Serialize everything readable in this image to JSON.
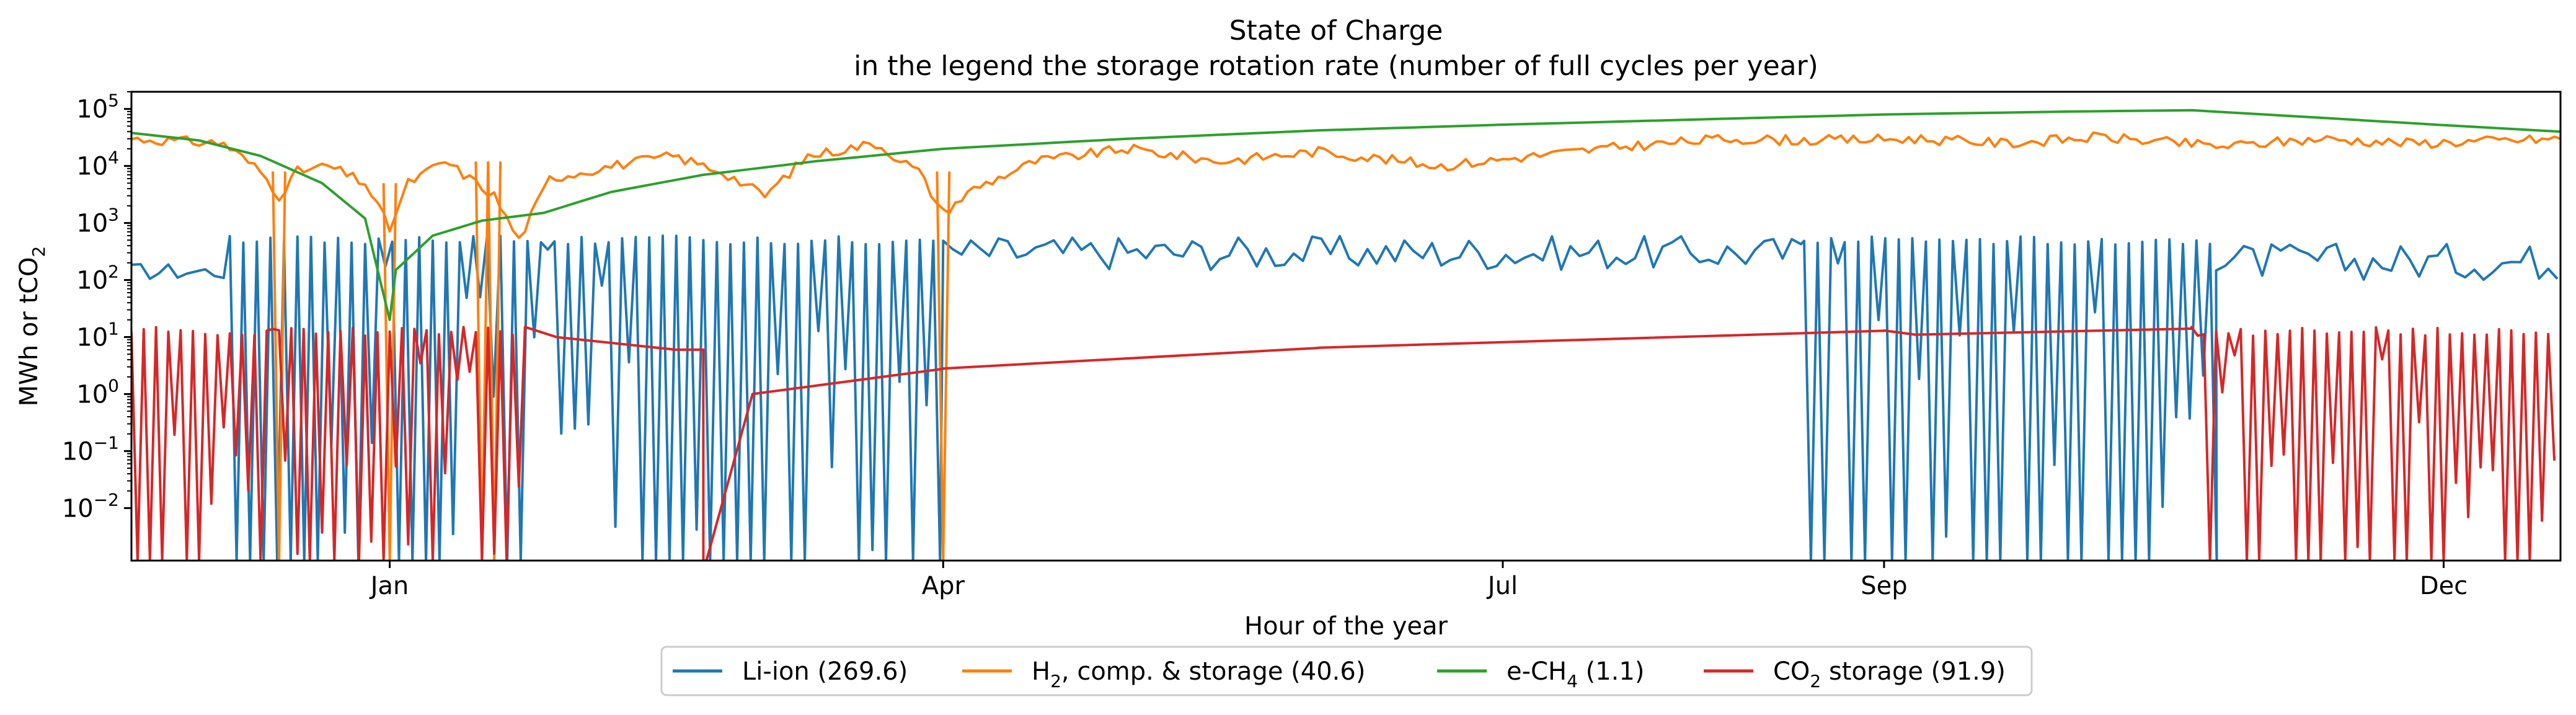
{
  "chart_data": {
    "type": "line",
    "title": "State of Charge",
    "subtitle": "in the legend the storage rotation rate (number of full cycles per year)",
    "xlabel": "Hour of the year",
    "ylabel": "MWh or tCO2",
    "yscale": "log",
    "ylim": [
      0.0012,
      200000
    ],
    "xlim": [
      "2012-11-20",
      "2013-12-20"
    ],
    "grid": false,
    "legend_position": "bottom-center",
    "x_ticks": [
      {
        "date": "2013-01-01",
        "label": "Jan"
      },
      {
        "date": "2013-04-01",
        "label": "Apr"
      },
      {
        "date": "2013-07-01",
        "label": "Jul"
      },
      {
        "date": "2013-09-01",
        "label": "Sep"
      },
      {
        "date": "2013-12-01",
        "label": "Dec"
      }
    ],
    "y_ticks": [
      {
        "value": 0.01,
        "base": "10",
        "exp": "−2"
      },
      {
        "value": 0.1,
        "base": "10",
        "exp": "−1"
      },
      {
        "value": 1,
        "base": "10",
        "exp": "0"
      },
      {
        "value": 10,
        "base": "10",
        "exp": "1"
      },
      {
        "value": 100,
        "base": "10",
        "exp": "2"
      },
      {
        "value": 1000,
        "base": "10",
        "exp": "3"
      },
      {
        "value": 10000,
        "base": "10",
        "exp": "4"
      },
      {
        "value": 100000,
        "base": "10",
        "exp": "5"
      }
    ],
    "series": [
      {
        "name": "Li-ion (269.6)",
        "color": "#1f77b4",
        "regime": [
          {
            "date": "2012-11-20",
            "kind": "active",
            "hi": 200,
            "lo": 100
          },
          {
            "date": "2012-12-06",
            "kind": "cycling",
            "hi": 600,
            "lo": 0.0012
          },
          {
            "date": "2013-04-01",
            "kind": "active",
            "hi": 600,
            "lo": 150
          },
          {
            "date": "2013-08-19",
            "kind": "cycling",
            "hi": 600,
            "lo": 0.0012
          },
          {
            "date": "2013-10-25",
            "kind": "active",
            "hi": 450,
            "lo": 100
          },
          {
            "date": "2013-12-20",
            "kind": "end",
            "hi": 300,
            "lo": 100
          }
        ]
      },
      {
        "name": "H2, comp. & storage (40.6)",
        "name_parts": {
          "pre": "H",
          "sub": "2",
          "post": ", comp. & storage (40.6)"
        },
        "color": "#ff7f0e",
        "points": [
          [
            "2012-11-20",
            30000
          ],
          [
            "2012-12-05",
            25000
          ],
          [
            "2012-12-11",
            8000
          ],
          [
            "2012-12-14",
            3000
          ],
          [
            "2012-12-17",
            8000
          ],
          [
            "2012-12-22",
            10000
          ],
          [
            "2012-12-28",
            5000
          ],
          [
            "2013-01-01",
            800
          ],
          [
            "2013-01-04",
            5000
          ],
          [
            "2013-01-10",
            12000
          ],
          [
            "2013-01-18",
            3000
          ],
          [
            "2013-01-22",
            500
          ],
          [
            "2013-01-27",
            6000
          ],
          [
            "2013-02-06",
            10000
          ],
          [
            "2013-02-16",
            15000
          ],
          [
            "2013-02-24",
            8000
          ],
          [
            "2013-03-03",
            3000
          ],
          [
            "2013-03-10",
            15000
          ],
          [
            "2013-03-21",
            25000
          ],
          [
            "2013-03-28",
            8000
          ],
          [
            "2013-04-01",
            1500
          ],
          [
            "2013-04-06",
            4000
          ],
          [
            "2013-04-16",
            12000
          ],
          [
            "2013-05-01",
            20000
          ],
          [
            "2013-05-16",
            12000
          ],
          [
            "2013-06-01",
            18000
          ],
          [
            "2013-06-21",
            10000
          ],
          [
            "2013-07-06",
            15000
          ],
          [
            "2013-07-21",
            22000
          ],
          [
            "2013-08-06",
            30000
          ],
          [
            "2013-08-21",
            28000
          ],
          [
            "2013-09-06",
            30000
          ],
          [
            "2013-09-21",
            25000
          ],
          [
            "2013-10-06",
            32000
          ],
          [
            "2013-10-26",
            22000
          ],
          [
            "2013-11-11",
            30000
          ],
          [
            "2013-11-26",
            25000
          ],
          [
            "2013-12-20",
            30000
          ]
        ],
        "drops_to_zero": [
          "2012-12-14",
          "2013-01-01",
          "2013-01-16",
          "2013-01-18",
          "2013-04-01"
        ]
      },
      {
        "name": "e-CH4 (1.1)",
        "name_parts": {
          "pre": "e-CH",
          "sub": "4",
          "post": " (1.1)"
        },
        "color": "#2ca02c",
        "points": [
          [
            "2012-11-20",
            38000
          ],
          [
            "2012-12-01",
            28000
          ],
          [
            "2012-12-11",
            15000
          ],
          [
            "2012-12-21",
            5000
          ],
          [
            "2012-12-28",
            1200
          ],
          [
            "2013-01-01",
            20
          ],
          [
            "2013-01-02",
            150
          ],
          [
            "2013-01-08",
            600
          ],
          [
            "2013-01-16",
            1100
          ],
          [
            "2013-01-26",
            1500
          ],
          [
            "2013-02-06",
            3500
          ],
          [
            "2013-02-21",
            7000
          ],
          [
            "2013-03-11",
            12000
          ],
          [
            "2013-04-01",
            20000
          ],
          [
            "2013-05-01",
            30000
          ],
          [
            "2013-06-01",
            42000
          ],
          [
            "2013-07-01",
            53000
          ],
          [
            "2013-08-01",
            65000
          ],
          [
            "2013-09-01",
            80000
          ],
          [
            "2013-10-01",
            90000
          ],
          [
            "2013-10-21",
            95000
          ],
          [
            "2013-11-11",
            70000
          ],
          [
            "2013-12-01",
            52000
          ],
          [
            "2013-12-20",
            40000
          ]
        ]
      },
      {
        "name": "CO2 storage (91.9)",
        "name_parts": {
          "pre": "CO",
          "sub": "2",
          "post": " storage (91.9)"
        },
        "color": "#d62728",
        "regime": [
          {
            "date": "2012-11-20",
            "kind": "cycling",
            "hi": 15,
            "lo": 0.0012
          },
          {
            "date": "2013-01-23",
            "kind": "level",
            "value": 15
          },
          {
            "date": "2013-01-28",
            "kind": "level",
            "value": 10
          },
          {
            "date": "2013-02-16",
            "kind": "level",
            "value": 6
          },
          {
            "date": "2013-02-21",
            "kind": "drop",
            "value": 0.0012
          },
          {
            "date": "2013-03-01",
            "kind": "level",
            "value": 1
          },
          {
            "date": "2013-04-01",
            "kind": "level",
            "value": 2.8
          },
          {
            "date": "2013-06-01",
            "kind": "level",
            "value": 6.5
          },
          {
            "date": "2013-09-01",
            "kind": "level",
            "value": 13
          },
          {
            "date": "2013-09-06",
            "kind": "level",
            "value": 11
          },
          {
            "date": "2013-10-20",
            "kind": "level",
            "value": 14
          },
          {
            "date": "2013-10-21",
            "kind": "cycling",
            "hi": 15,
            "lo": 0.0012
          },
          {
            "date": "2013-12-20",
            "kind": "end"
          }
        ]
      }
    ]
  }
}
